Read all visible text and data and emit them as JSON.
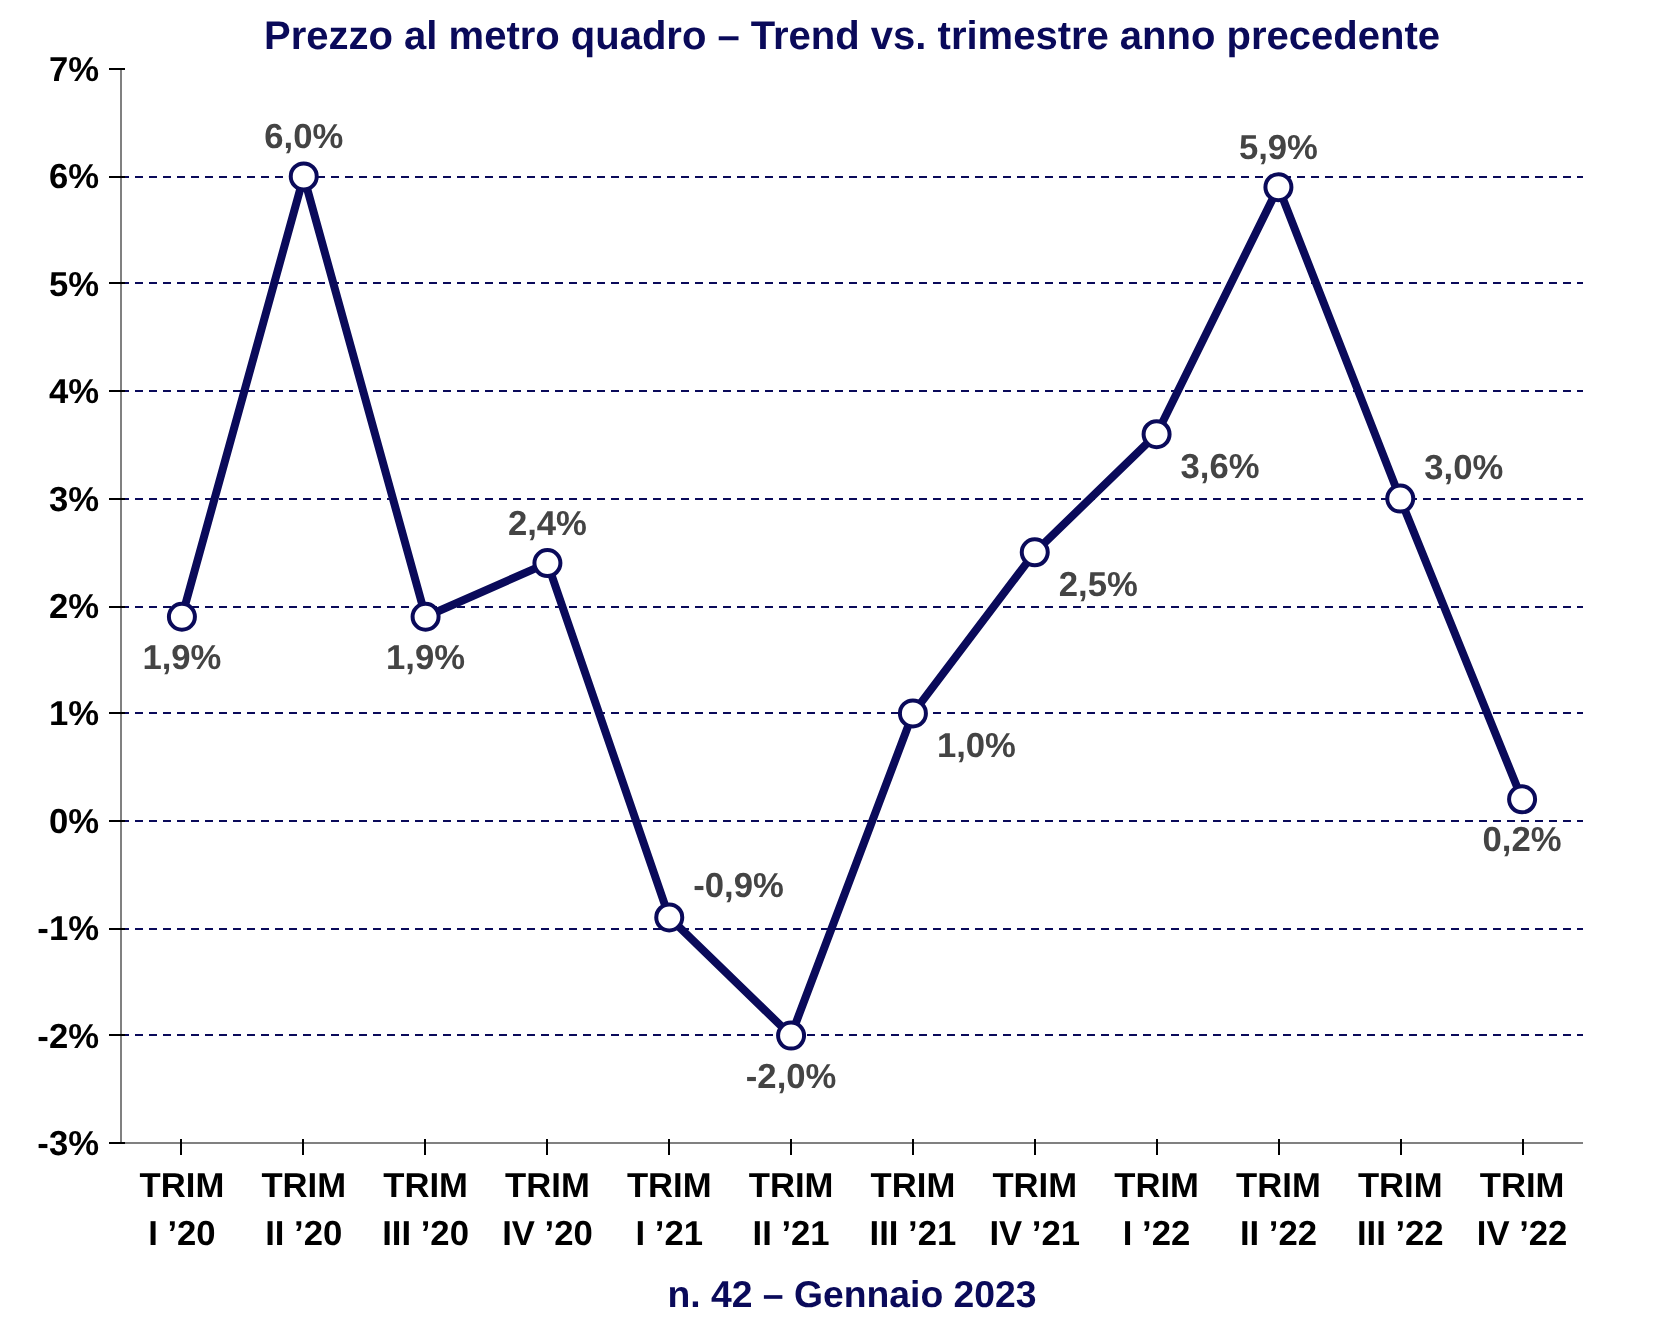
{
  "chart_data": {
    "type": "line",
    "title": "Prezzo al metro quadro – Trend vs. trimestre anno precedente",
    "categories": [
      "TRIM\nI ’20",
      "TRIM\nII ’20",
      "TRIM\nIII ’20",
      "TRIM\nIV ’20",
      "TRIM\nI ’21",
      "TRIM\nII ’21",
      "TRIM\nIII ’21",
      "TRIM\nIV ’21",
      "TRIM\nI ’22",
      "TRIM\nII ’22",
      "TRIM\nIII ’22",
      "TRIM\nIV ’22"
    ],
    "series": [
      {
        "color": "#0a0a5a",
        "values": [
          1.9,
          6.0,
          1.9,
          2.4,
          -0.9,
          -2.0,
          1.0,
          2.5,
          3.6,
          5.9,
          3.0,
          0.2
        ],
        "value_labels": [
          "1,9%",
          "6,0%",
          "1,9%",
          "2,4%",
          "-0,9%",
          "-2,0%",
          "1,0%",
          "2,5%",
          "3,6%",
          "5,9%",
          "3,0%",
          "0,2%"
        ]
      }
    ],
    "ylim": [
      -3,
      7
    ],
    "yticks": [
      {
        "value": -3,
        "label": "-3%"
      },
      {
        "value": -2,
        "label": "-2%"
      },
      {
        "value": -1,
        "label": "-1%"
      },
      {
        "value": 0,
        "label": "0%"
      },
      {
        "value": 1,
        "label": "1%"
      },
      {
        "value": 2,
        "label": "2%"
      },
      {
        "value": 3,
        "label": "3%"
      },
      {
        "value": 4,
        "label": "4%"
      },
      {
        "value": 5,
        "label": "5%"
      },
      {
        "value": 6,
        "label": "6%"
      },
      {
        "value": 7,
        "label": "7%"
      }
    ],
    "grid": "y",
    "marker": "circle",
    "line_style": "solid",
    "annotations": [
      "n. 42 – Gennaio 2023"
    ]
  }
}
